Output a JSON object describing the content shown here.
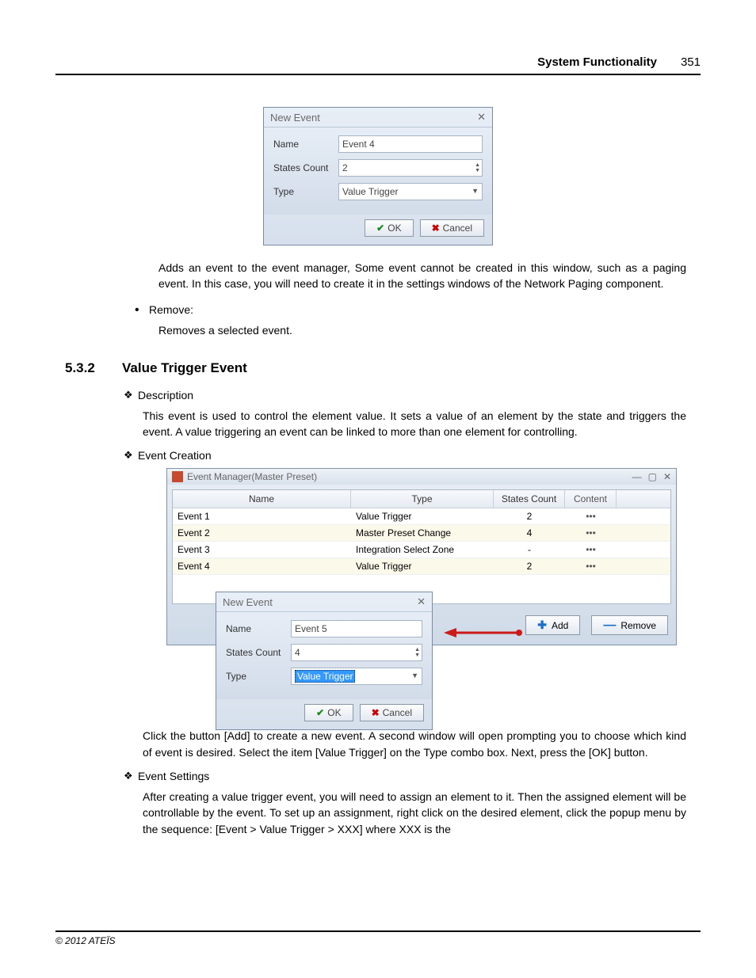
{
  "header": {
    "title": "System Functionality",
    "page": "351"
  },
  "footer": "© 2012 ATEÏS",
  "dialog1": {
    "title": "New Event",
    "fields": {
      "name_label": "Name",
      "name_value": "Event 4",
      "sc_label": "States Count",
      "sc_value": "2",
      "type_label": "Type",
      "type_value": "Value Trigger"
    },
    "ok": "OK",
    "cancel": "Cancel"
  },
  "p_add": "Adds an event to the event manager, Some event cannot be created in this window, such as a paging event. In this case, you will need to create it in the settings windows of the Network Paging component.",
  "remove_label": "Remove:",
  "p_remove": "Removes a selected event.",
  "section": {
    "num": "5.3.2",
    "title": "Value Trigger Event"
  },
  "h_desc": "Description",
  "p_desc": "This event is used to control the element value. It sets a value of an element by the state and triggers the event. A value triggering an event can be linked to more than one element for controlling.",
  "h_evcreate": "Event Creation",
  "em": {
    "title": "Event Manager(Master Preset)",
    "columns": {
      "name": "Name",
      "type": "Type",
      "sc": "States Count",
      "content": "Content"
    },
    "rows": [
      {
        "name": "Event 1",
        "type": "Value Trigger",
        "sc": "2",
        "alt": false
      },
      {
        "name": "Event 2",
        "type": "Master Preset Change",
        "sc": "4",
        "alt": true
      },
      {
        "name": "Event 3",
        "type": "Integration Select Zone",
        "sc": "-",
        "alt": false
      },
      {
        "name": "Event 4",
        "type": "Value Trigger",
        "sc": "2",
        "alt": true
      }
    ],
    "add": "Add",
    "remove": "Remove"
  },
  "dialog2": {
    "title": "New Event",
    "fields": {
      "name_label": "Name",
      "name_value": "Event 5",
      "sc_label": "States Count",
      "sc_value": "4",
      "type_label": "Type",
      "type_value": "Value Trigger"
    },
    "ok": "OK",
    "cancel": "Cancel"
  },
  "p_click": "Click the button [Add] to create a new event. A second window will open prompting you to choose which kind of event is desired. Select the item [Value Trigger] on the Type combo box. Next, press the [OK] button.",
  "h_evset": "Event Settings",
  "p_set": "After creating a value trigger event, you will need to assign an element to it. Then the assigned element will be controllable by the event. To set up an assignment, right click on the desired element, click the popup menu by the sequence: [Event > Value Trigger > XXX] where XXX is the",
  "colors": {
    "dialog_border": "#7a8ca3",
    "dialog_bg_top": "#e8eef6",
    "dialog_bg_bot": "#d6e0ec",
    "alt_row": "#fbf9ea",
    "arrow": "#cc1a1a",
    "ok_check": "#1a8a1a",
    "cancel_x": "#c00",
    "plus": "#1a6ec8"
  }
}
